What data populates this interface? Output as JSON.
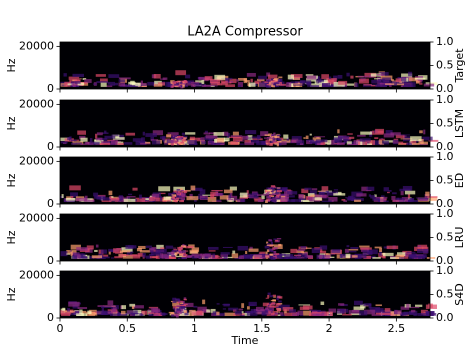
{
  "chart_data": {
    "type": "spectrogram",
    "title": "LA2A Compressor",
    "xlabel": "Time",
    "ylabel": "Hz",
    "panels": [
      {
        "name": "Target"
      },
      {
        "name": "LSTM"
      },
      {
        "name": "ED"
      },
      {
        "name": "LRU"
      },
      {
        "name": "S4D"
      }
    ],
    "xlim": [
      0,
      2.75
    ],
    "xticks": [
      0,
      0.5,
      1,
      1.5,
      2,
      2.5
    ],
    "ylim": [
      0,
      22050
    ],
    "yticks": [
      0,
      20000
    ],
    "y2lim": [
      0,
      1
    ],
    "y2ticks": [
      {
        "value": 0,
        "label": "0.0"
      },
      {
        "value": 0.5,
        "label": "0.5"
      },
      {
        "value": 1,
        "label": "1.0"
      }
    ]
  }
}
